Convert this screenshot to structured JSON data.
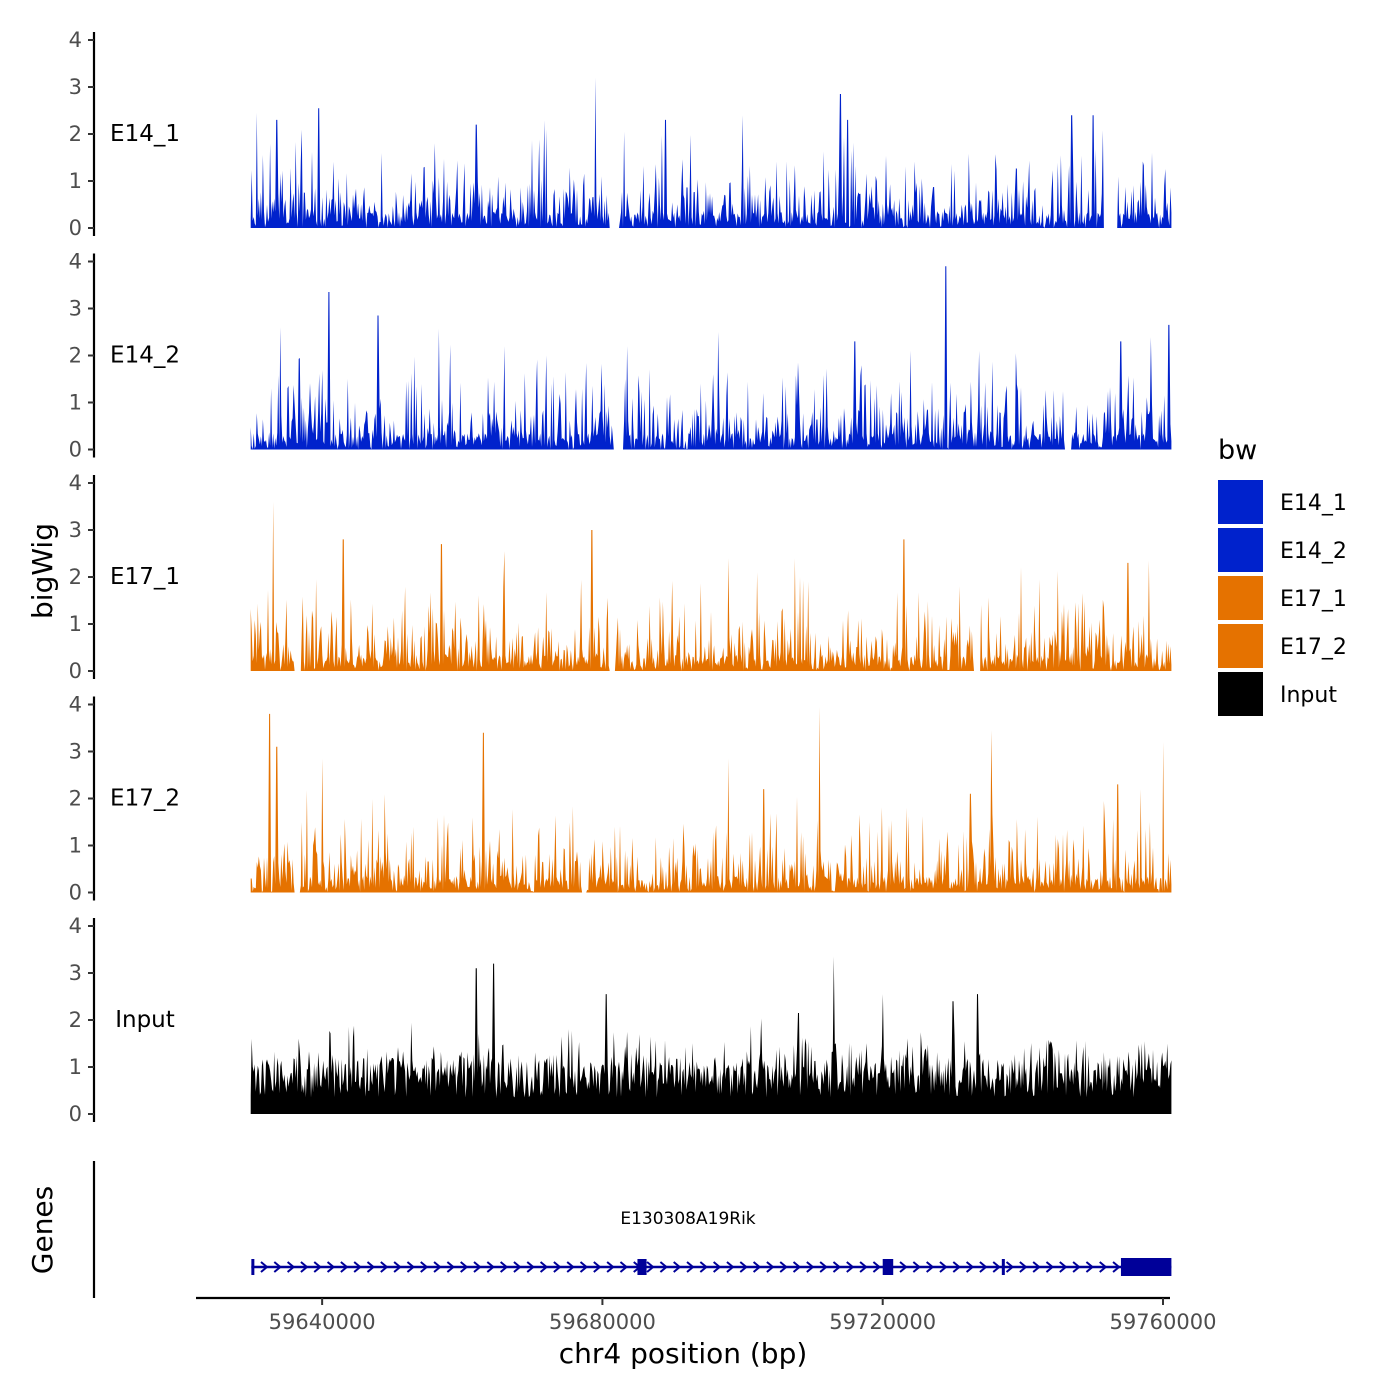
{
  "chart_data": {
    "type": "area",
    "ylabel": "bigWig",
    "xlabel": "chr4 position (bp)",
    "xlim": [
      59622000,
      59761000
    ],
    "x_ticks": [
      59640000,
      59680000,
      59720000,
      59760000
    ],
    "x_tick_labels": [
      "59640000",
      "59680000",
      "59720000",
      "59760000"
    ],
    "ylim": [
      0,
      4
    ],
    "y_ticks": [
      0,
      1,
      2,
      3,
      4
    ],
    "y_tick_labels": [
      "0",
      "1",
      "2",
      "3",
      "4"
    ],
    "data_range": [
      59629800,
      59761200
    ],
    "series": [
      {
        "name": "E14_1",
        "color": "#0022CC",
        "seed": 11,
        "peaks": [
          [
            59630700,
            2.45
          ],
          [
            59633500,
            2.3
          ],
          [
            59639500,
            2.55
          ],
          [
            59662000,
            2.2
          ],
          [
            59672000,
            2.1
          ],
          [
            59679000,
            3.2
          ],
          [
            59689000,
            2.3
          ],
          [
            59700000,
            2.4
          ],
          [
            59714000,
            2.85
          ],
          [
            59715000,
            2.3
          ],
          [
            59747000,
            2.4
          ],
          [
            59750000,
            2.4
          ]
        ],
        "gaps": [
          [
            59681000,
            59682500
          ],
          [
            59751500,
            59753500
          ]
        ]
      },
      {
        "name": "E14_2",
        "color": "#0022CC",
        "seed": 23,
        "peaks": [
          [
            59634000,
            2.6
          ],
          [
            59641000,
            3.35
          ],
          [
            59648000,
            2.85
          ],
          [
            59666000,
            2.2
          ],
          [
            59683500,
            2.2
          ],
          [
            59696500,
            2.5
          ],
          [
            59716000,
            2.3
          ],
          [
            59729000,
            3.9
          ],
          [
            59739000,
            2.05
          ],
          [
            59754000,
            2.3
          ],
          [
            59760800,
            2.65
          ]
        ],
        "gaps": [
          [
            59681500,
            59683000
          ],
          [
            59746000,
            59747000
          ]
        ]
      },
      {
        "name": "E17_1",
        "color": "#E57200",
        "seed": 37,
        "peaks": [
          [
            59633000,
            3.6
          ],
          [
            59643000,
            2.8
          ],
          [
            59657000,
            2.7
          ],
          [
            59666000,
            2.55
          ],
          [
            59678500,
            3.0
          ],
          [
            59698000,
            2.4
          ],
          [
            59707500,
            2.4
          ],
          [
            59723000,
            2.8
          ],
          [
            59733000,
            2.6
          ],
          [
            59755000,
            2.3
          ],
          [
            59758000,
            2.35
          ]
        ],
        "gaps": [
          [
            59636000,
            59637000
          ],
          [
            59681000,
            59681800
          ],
          [
            59733000,
            59734000
          ]
        ]
      },
      {
        "name": "E17_2",
        "color": "#E57200",
        "seed": 41,
        "peaks": [
          [
            59632500,
            3.8
          ],
          [
            59633500,
            3.1
          ],
          [
            59640000,
            2.85
          ],
          [
            59663000,
            3.4
          ],
          [
            59698000,
            2.85
          ],
          [
            59703000,
            2.2
          ],
          [
            59711000,
            3.95
          ],
          [
            59732500,
            2.1
          ],
          [
            59735500,
            3.45
          ],
          [
            59753500,
            2.3
          ],
          [
            59756800,
            2.2
          ],
          [
            59760000,
            3.2
          ]
        ],
        "gaps": [
          [
            59636000,
            59636900
          ],
          [
            59677000,
            59677800
          ]
        ]
      },
      {
        "name": "Input",
        "color": "#000000",
        "seed": 53,
        "peaks": [
          [
            59662000,
            3.1
          ],
          [
            59664500,
            3.2
          ],
          [
            59680500,
            2.55
          ],
          [
            59708000,
            2.15
          ],
          [
            59713000,
            3.35
          ],
          [
            59720000,
            2.55
          ],
          [
            59730000,
            2.4
          ],
          [
            59733500,
            2.55
          ]
        ],
        "gaps": []
      }
    ],
    "legend": {
      "title": "bw",
      "position": "right",
      "entries": [
        {
          "label": "E14_1",
          "color": "#0022CC"
        },
        {
          "label": "E14_2",
          "color": "#0022CC"
        },
        {
          "label": "E17_1",
          "color": "#E57200"
        },
        {
          "label": "E17_2",
          "color": "#E57200"
        },
        {
          "label": "Input",
          "color": "#000000"
        }
      ]
    },
    "gene_track": {
      "label": "Genes",
      "gene_name": "E130308A19Rik",
      "color": "#000099",
      "start": 59629900,
      "end": 59761200,
      "strand": "+",
      "exons": [
        [
          59629900,
          59630200
        ],
        [
          59685000,
          59686300
        ],
        [
          59720000,
          59721500
        ],
        [
          59737000,
          59737300
        ],
        [
          59754000,
          59761200
        ]
      ]
    }
  }
}
